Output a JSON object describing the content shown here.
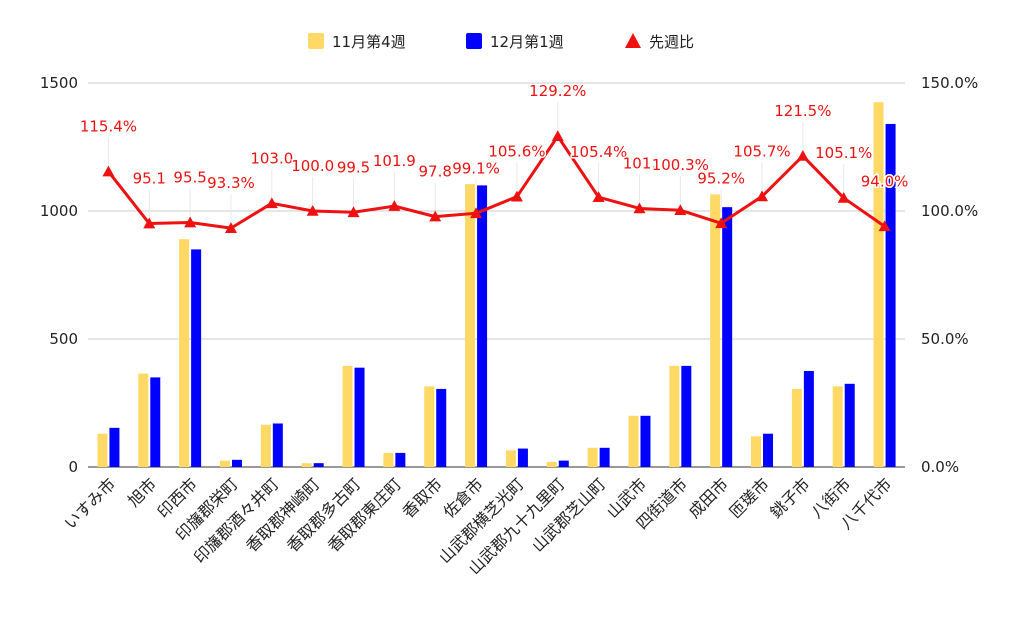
{
  "chart_data": {
    "type": "bar",
    "categories": [
      "いすみ市",
      "旭市",
      "印西市",
      "印旛郡栄町",
      "印旛郡酒々井町",
      "香取郡神崎町",
      "香取郡多古町",
      "香取郡東庄町",
      "香取市",
      "佐倉市",
      "山武郡横芝光町",
      "山武郡九十九里町",
      "山武郡芝山町",
      "山武市",
      "四街道市",
      "成田市",
      "匝瑳市",
      "銚子市",
      "八街市",
      "八千代市"
    ],
    "series": [
      {
        "name": "11月第4週",
        "type": "bar",
        "axis": "left",
        "color": "#ffd966",
        "values": [
          130,
          365,
          890,
          25,
          165,
          15,
          395,
          55,
          315,
          1105,
          65,
          20,
          75,
          200,
          395,
          1065,
          120,
          305,
          315,
          1425
        ]
      },
      {
        "name": "12月第1週",
        "type": "bar",
        "axis": "left",
        "color": "#0000ff",
        "values": [
          153,
          350,
          850,
          28,
          170,
          15,
          388,
          55,
          305,
          1100,
          72,
          25,
          75,
          200,
          395,
          1015,
          130,
          375,
          325,
          1340
        ]
      },
      {
        "name": "先週比",
        "type": "line",
        "axis": "right",
        "color": "#ee1111",
        "values": [
          115.4,
          95.1,
          95.5,
          93.3,
          103.0,
          100.0,
          99.5,
          101.9,
          97.8,
          99.1,
          105.6,
          129.2,
          105.4,
          101.0,
          100.3,
          95.2,
          105.7,
          121.5,
          105.1,
          94.0
        ],
        "labels": [
          "115.4%",
          "95.1",
          "95.5",
          "93.3%",
          "103.0",
          "100.0",
          "99.5",
          "101.9",
          "97.8",
          "99.1%",
          "105.6%",
          "129.2%",
          "105.4%",
          "101.",
          "100.3%",
          "95.2%",
          "105.7%",
          "121.5%",
          "105.1%",
          "94.0%"
        ]
      }
    ],
    "y_left": {
      "min": 0,
      "max": 1500,
      "ticks": [
        "0",
        "500",
        "1000",
        "1500"
      ]
    },
    "y_right": {
      "min": 0,
      "max": 150,
      "ticks": [
        "0.0%",
        "50.0%",
        "100.0%",
        "150.0%"
      ]
    },
    "legend_position": "top",
    "grid": true
  }
}
